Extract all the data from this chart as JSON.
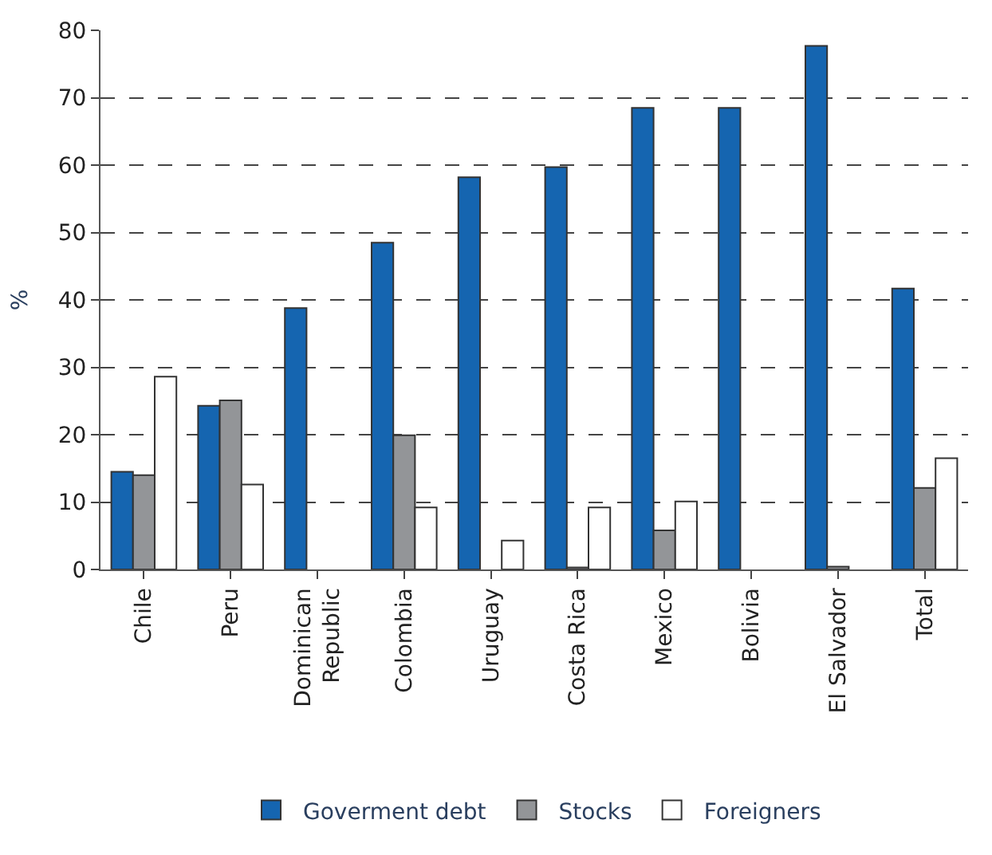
{
  "chart_data": {
    "type": "bar",
    "ylabel": "%",
    "categories": [
      "Chile",
      "Peru",
      "Dominican Republic",
      "Colombia",
      "Uruguay",
      "Costa Rica",
      "Mexico",
      "Bolivia",
      "El Salvador",
      "Total"
    ],
    "series": [
      {
        "name": "Goverment debt",
        "color": "#1565b0",
        "values": [
          14.5,
          24.3,
          38.8,
          48.5,
          58.2,
          59.7,
          68.5,
          68.5,
          77.7,
          41.7
        ]
      },
      {
        "name": "Stocks",
        "color": "#939598",
        "values": [
          14.0,
          25.1,
          null,
          19.9,
          null,
          0.3,
          5.8,
          null,
          0.4,
          12.1
        ]
      },
      {
        "name": "Foreigners",
        "color": "#ffffff",
        "values": [
          28.6,
          12.6,
          null,
          9.2,
          4.3,
          9.2,
          10.1,
          null,
          null,
          16.5
        ]
      }
    ],
    "ylim": [
      0,
      80
    ],
    "yticks": [
      0,
      10,
      20,
      30,
      40,
      50,
      60,
      70,
      80
    ],
    "grid": "y",
    "legend": "bottom"
  }
}
